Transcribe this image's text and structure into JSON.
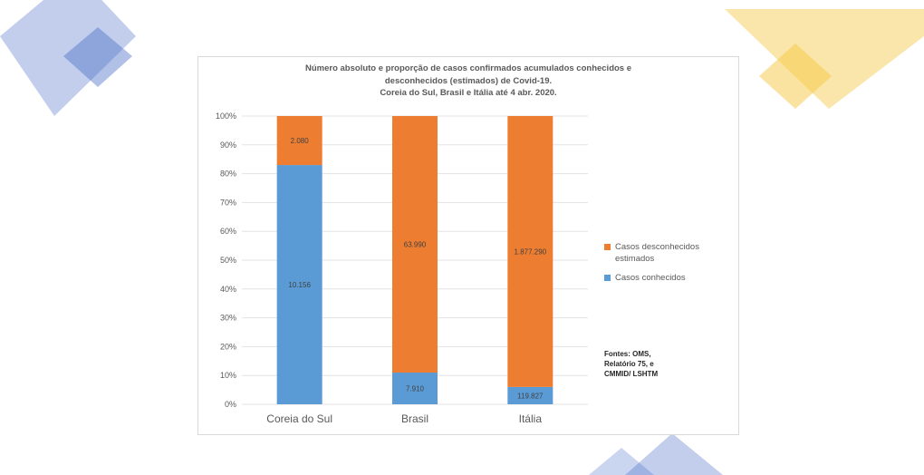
{
  "colors": {
    "known": "#5b9bd5",
    "unknown": "#ed7d31",
    "deco_blue": "#4f74c9",
    "deco_yellow": "#f5c842"
  },
  "chart_data": {
    "type": "bar",
    "stacked": true,
    "percent": true,
    "title_lines": [
      "Número absoluto e proporção de casos confirmados acumulados conhecidos e",
      "desconhecidos (estimados) de Covid-19.",
      "Coreia do Sul, Brasil e Itália até 4 abr. 2020."
    ],
    "categories": [
      "Coreia do Sul",
      "Brasil",
      "Itália"
    ],
    "series": [
      {
        "name": "Casos conhecidos",
        "values": [
          83,
          11,
          6
        ],
        "labels": [
          "10.156",
          "7.910",
          "119.827"
        ],
        "color": "#5b9bd5"
      },
      {
        "name": "Casos desconhecidos estimados",
        "values": [
          17,
          89,
          94
        ],
        "labels": [
          "2.080",
          "63.990",
          "1.877.290"
        ],
        "color": "#ed7d31"
      }
    ],
    "ylim": [
      0,
      100
    ],
    "yticks": [
      "0%",
      "10%",
      "20%",
      "30%",
      "40%",
      "50%",
      "60%",
      "70%",
      "80%",
      "90%",
      "100%"
    ],
    "grid": true,
    "legend_position": "right"
  },
  "legend": {
    "unknown": "Casos desconhecidos estimados",
    "known": "Casos conhecidos"
  },
  "source": "Fontes: OMS,\nRelatório 75, e\nCMMID/ LSHTM"
}
